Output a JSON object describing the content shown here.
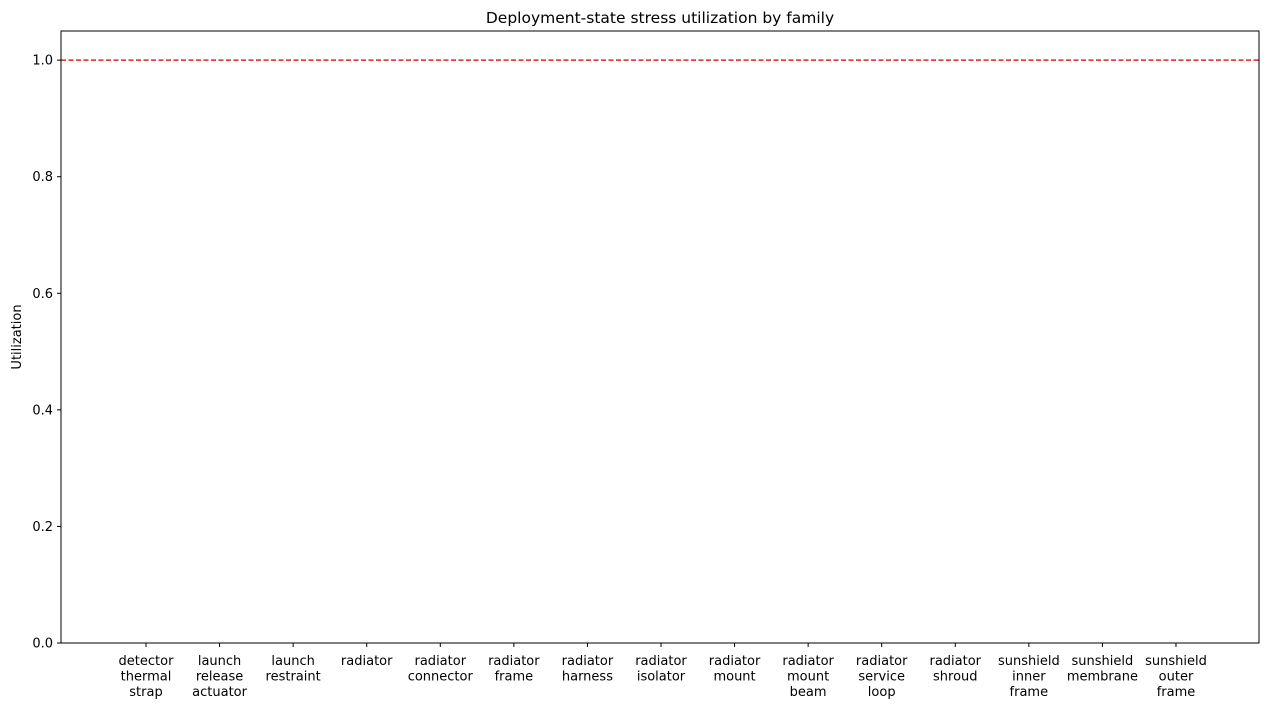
{
  "chart_data": {
    "type": "bar",
    "title": "Deployment-state stress utilization by family",
    "xlabel": "",
    "ylabel": "Utilization",
    "ylim": [
      0,
      1.05
    ],
    "yticks": [
      "0.0",
      "0.2",
      "0.4",
      "0.6",
      "0.8",
      "1.0"
    ],
    "categories": [
      [
        "detector",
        "thermal",
        "strap"
      ],
      [
        "launch",
        "release",
        "actuator"
      ],
      [
        "launch",
        "restraint"
      ],
      [
        "radiator"
      ],
      [
        "radiator",
        "connector"
      ],
      [
        "radiator",
        "frame"
      ],
      [
        "radiator",
        "harness"
      ],
      [
        "radiator",
        "isolator"
      ],
      [
        "radiator",
        "mount"
      ],
      [
        "radiator",
        "mount",
        "beam"
      ],
      [
        "radiator",
        "service",
        "loop"
      ],
      [
        "radiator",
        "shroud"
      ],
      [
        "sunshield",
        "inner",
        "frame"
      ],
      [
        "sunshield",
        "membrane"
      ],
      [
        "sunshield",
        "outer",
        "frame"
      ]
    ],
    "values": [
      0,
      0,
      0,
      0,
      0,
      0,
      0,
      0,
      0,
      0,
      0,
      0,
      0,
      0,
      0
    ],
    "reference_line": {
      "y": 1.0,
      "style": "dashed",
      "color": "#d62728"
    },
    "grid": false,
    "legend": "none"
  }
}
